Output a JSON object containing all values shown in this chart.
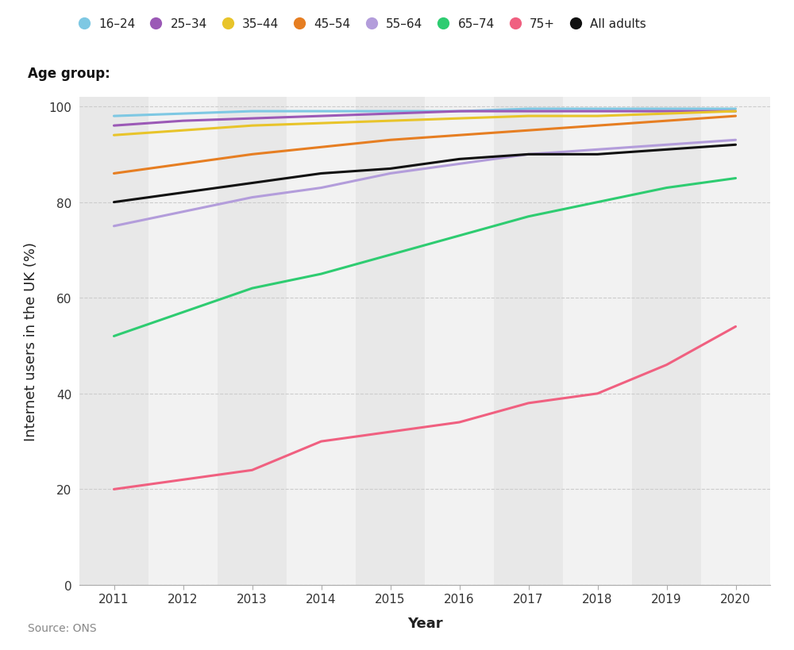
{
  "years": [
    2011,
    2012,
    2013,
    2014,
    2015,
    2016,
    2017,
    2018,
    2019,
    2020
  ],
  "series": {
    "16-24": {
      "color": "#7ec8e3",
      "values": [
        98,
        98.5,
        99,
        99,
        99,
        99,
        99.5,
        99.5,
        99.5,
        99.5
      ]
    },
    "25-34": {
      "color": "#9b59b6",
      "values": [
        96,
        97,
        97.5,
        98,
        98.5,
        99,
        99,
        99,
        99,
        99
      ]
    },
    "35-44": {
      "color": "#e8c42a",
      "values": [
        94,
        95,
        96,
        96.5,
        97,
        97.5,
        98,
        98,
        98.5,
        99
      ]
    },
    "45-54": {
      "color": "#e67e22",
      "values": [
        86,
        88,
        90,
        91.5,
        93,
        94,
        95,
        96,
        97,
        98
      ]
    },
    "55-64": {
      "color": "#b39ddb",
      "values": [
        75,
        78,
        81,
        83,
        86,
        88,
        90,
        91,
        92,
        93
      ]
    },
    "65-74": {
      "color": "#2ecc71",
      "values": [
        52,
        57,
        62,
        65,
        69,
        73,
        77,
        80,
        83,
        85
      ]
    },
    "75+": {
      "color": "#f06080",
      "values": [
        20,
        22,
        24,
        30,
        32,
        34,
        38,
        40,
        46,
        54
      ]
    },
    "All adults": {
      "color": "#111111",
      "values": [
        80,
        82,
        84,
        86,
        87,
        89,
        90,
        90,
        91,
        92
      ]
    }
  },
  "legend_labels": [
    "16–24",
    "25–34",
    "35–44",
    "45–54",
    "55–64",
    "65–74",
    "75+",
    "All adults"
  ],
  "legend_colors": [
    "#7ec8e3",
    "#9b59b6",
    "#e8c42a",
    "#e67e22",
    "#b39ddb",
    "#2ecc71",
    "#f06080",
    "#111111"
  ],
  "legend_title": "Age group:",
  "xlabel": "Year",
  "ylabel": "Internet users in the UK (%)",
  "ylim": [
    0,
    102
  ],
  "yticks": [
    0,
    20,
    40,
    60,
    80,
    100
  ],
  "background_color": "#ffffff",
  "stripe_color_dark": "#e8e8e8",
  "stripe_color_light": "#f2f2f2",
  "source_text": "Source: ONS",
  "line_width": 2.2,
  "grid_color": "#cccccc"
}
